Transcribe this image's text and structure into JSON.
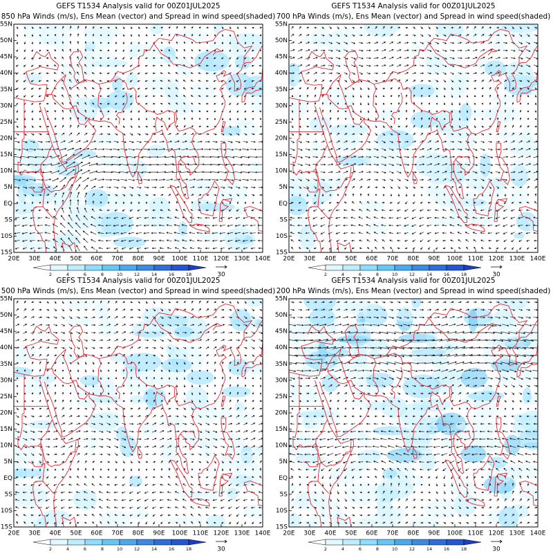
{
  "panels": [
    {
      "title_line1": "GEFS T1534 Analysis valid for 00Z01JUL2025",
      "title_line2": "850 hPa Winds (m/s), Ens Mean (vector) and Spread in wind speed(shaded)"
    },
    {
      "title_line1": "GEFS T1534 Analysis valid for 00Z01JUL2025",
      "title_line2": "700 hPa Winds (m/s), Ens Mean (vector) and Spread in wind speed(shaded)"
    },
    {
      "title_line1": "GEFS T1534 Analysis valid for 00Z01JUL2025",
      "title_line2": "500 hPa Winds (m/s), Ens Mean (vector) and Spread in wind speed(shaded)"
    },
    {
      "title_line1": "GEFS T1534 Analysis valid for 00Z01JUL2025",
      "title_line2": "200 hPa Winds (m/s), Ens Mean (vector) and Spread in wind speed(shaded)"
    }
  ],
  "lat_labels": [
    "55N",
    "50N",
    "45N",
    "40N",
    "35N",
    "30N",
    "25N",
    "20N",
    "15N",
    "10N",
    "5N",
    "EQ",
    "5S",
    "10S",
    "15S"
  ],
  "lon_labels": [
    "20E",
    "30E",
    "40E",
    "50E",
    "60E",
    "70E",
    "80E",
    "90E",
    "100E",
    "110E",
    "120E",
    "130E",
    "140E"
  ],
  "colorbar": {
    "levels": [
      2,
      4,
      6,
      8,
      10,
      12,
      14,
      16,
      18
    ],
    "colors": [
      "#ffffff",
      "#e0f8ff",
      "#bdeeff",
      "#8fdcff",
      "#66c7f5",
      "#4aa8ee",
      "#3a8ae0",
      "#2f6ed8",
      "#2457cf",
      "#1a3fc6"
    ]
  },
  "ref_vector": 30
}
